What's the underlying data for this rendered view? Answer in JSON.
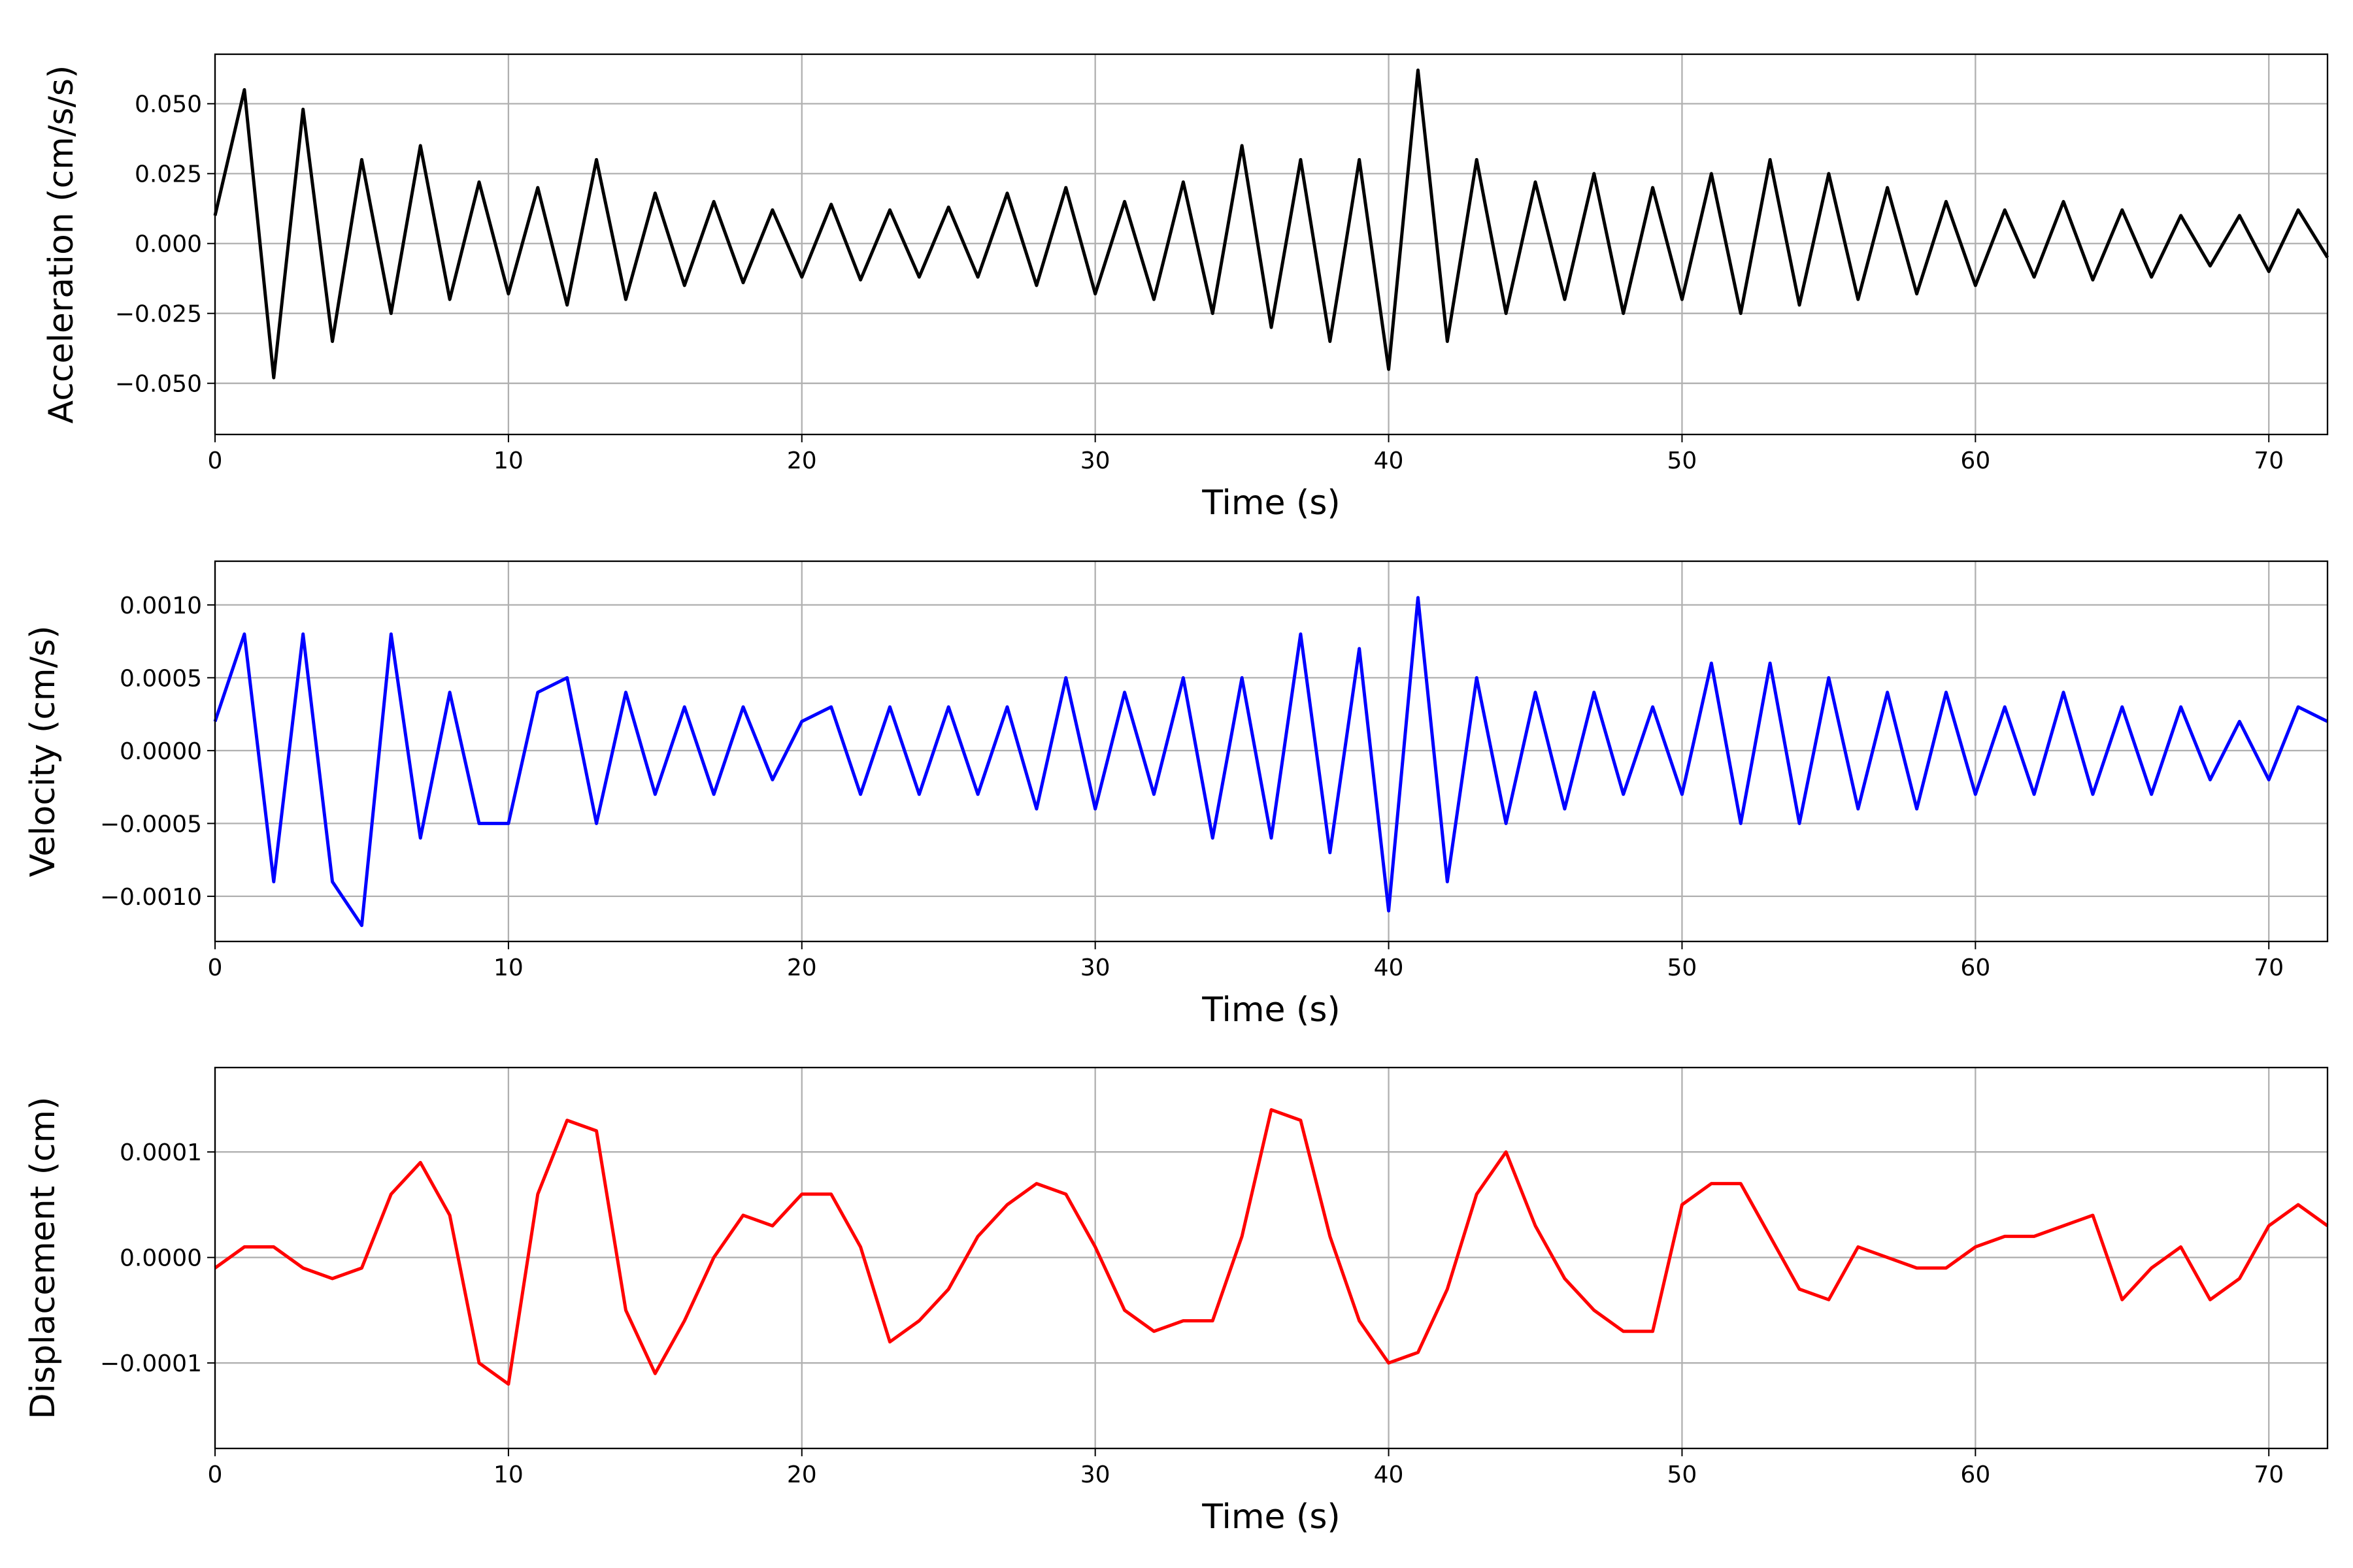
{
  "chart_data": [
    {
      "type": "line",
      "xlabel": "Time (s)",
      "ylabel": "Acceleration (cm/s/s)",
      "color": "#000000",
      "grid": true,
      "x": [
        0,
        1,
        2,
        3,
        4,
        5,
        6,
        7,
        8,
        9,
        10,
        11,
        12,
        13,
        14,
        15,
        16,
        17,
        18,
        19,
        20,
        21,
        22,
        23,
        24,
        25,
        26,
        27,
        28,
        29,
        30,
        31,
        32,
        33,
        34,
        35,
        36,
        37,
        38,
        39,
        40,
        41,
        42,
        43,
        44,
        45,
        46,
        47,
        48,
        49,
        50,
        51,
        52,
        53,
        54,
        55,
        56,
        57,
        58,
        59,
        60,
        61,
        62,
        63,
        64,
        65,
        66,
        67,
        68,
        69,
        70,
        71,
        72
      ],
      "values": [
        0.01,
        0.055,
        -0.048,
        0.048,
        -0.035,
        0.03,
        -0.025,
        0.035,
        -0.02,
        0.022,
        -0.018,
        0.02,
        -0.022,
        0.03,
        -0.02,
        0.018,
        -0.015,
        0.015,
        -0.014,
        0.012,
        -0.012,
        0.014,
        -0.013,
        0.012,
        -0.012,
        0.013,
        -0.012,
        0.018,
        -0.015,
        0.02,
        -0.018,
        0.015,
        -0.02,
        0.022,
        -0.025,
        0.035,
        -0.03,
        0.03,
        -0.035,
        0.03,
        -0.045,
        0.062,
        -0.035,
        0.03,
        -0.025,
        0.022,
        -0.02,
        0.025,
        -0.025,
        0.02,
        -0.02,
        0.025,
        -0.025,
        0.03,
        -0.022,
        0.025,
        -0.02,
        0.02,
        -0.018,
        0.015,
        -0.015,
        0.012,
        -0.012,
        0.015,
        -0.013,
        0.012,
        -0.012,
        0.01,
        -0.008,
        0.01,
        -0.01,
        0.012,
        -0.005
      ],
      "xlim": [
        0,
        72
      ],
      "xticks": [
        0,
        10,
        20,
        30,
        40,
        50,
        60,
        70
      ],
      "ylim": [
        -0.0683,
        0.0677
      ],
      "yticks": [
        {
          "value": -0.05,
          "label": "−0.050"
        },
        {
          "value": -0.025,
          "label": "−0.025"
        },
        {
          "value": 0,
          "label": "0.000"
        },
        {
          "value": 0.025,
          "label": "0.025"
        },
        {
          "value": 0.05,
          "label": "0.050"
        }
      ]
    },
    {
      "type": "line",
      "xlabel": "Time (s)",
      "ylabel": "Velocity (cm/s)",
      "color": "#0000ff",
      "grid": true,
      "x": [
        0,
        1,
        2,
        3,
        4,
        5,
        6,
        7,
        8,
        9,
        10,
        11,
        12,
        13,
        14,
        15,
        16,
        17,
        18,
        19,
        20,
        21,
        22,
        23,
        24,
        25,
        26,
        27,
        28,
        29,
        30,
        31,
        32,
        33,
        34,
        35,
        36,
        37,
        38,
        39,
        40,
        41,
        42,
        43,
        44,
        45,
        46,
        47,
        48,
        49,
        50,
        51,
        52,
        53,
        54,
        55,
        56,
        57,
        58,
        59,
        60,
        61,
        62,
        63,
        64,
        65,
        66,
        67,
        68,
        69,
        70,
        71,
        72
      ],
      "values": [
        0.0002,
        0.0008,
        -0.0009,
        0.0008,
        -0.0009,
        -0.0012,
        0.0008,
        -0.0006,
        0.0004,
        -0.0005,
        -0.0005,
        0.0004,
        0.0005,
        -0.0005,
        0.0004,
        -0.0003,
        0.0003,
        -0.0003,
        0.0003,
        -0.0002,
        0.0002,
        0.0003,
        -0.0003,
        0.0003,
        -0.0003,
        0.0003,
        -0.0003,
        0.0003,
        -0.0004,
        0.0005,
        -0.0004,
        0.0004,
        -0.0003,
        0.0005,
        -0.0006,
        0.0005,
        -0.0006,
        0.0008,
        -0.0007,
        0.0007,
        -0.0011,
        0.00105,
        -0.0009,
        0.0005,
        -0.0005,
        0.0004,
        -0.0004,
        0.0004,
        -0.0003,
        0.0003,
        -0.0003,
        0.0006,
        -0.0005,
        0.0006,
        -0.0005,
        0.0005,
        -0.0004,
        0.0004,
        -0.0004,
        0.0004,
        -0.0003,
        0.0003,
        -0.0003,
        0.0004,
        -0.0003,
        0.0003,
        -0.0003,
        0.0003,
        -0.0002,
        0.0002,
        -0.0002,
        0.0003,
        0.0002
      ],
      "xlim": [
        0,
        72
      ],
      "xticks": [
        0,
        10,
        20,
        30,
        40,
        50,
        60,
        70
      ],
      "ylim": [
        -0.00131,
        0.0013
      ],
      "yticks": [
        {
          "value": -0.001,
          "label": "−0.0010"
        },
        {
          "value": -0.0005,
          "label": "−0.0005"
        },
        {
          "value": 0,
          "label": "0.0000"
        },
        {
          "value": 0.0005,
          "label": "0.0005"
        },
        {
          "value": 0.001,
          "label": "0.0010"
        }
      ]
    },
    {
      "type": "line",
      "xlabel": "Time (s)",
      "ylabel": "Displacement (cm)",
      "color": "#ff0000",
      "grid": true,
      "x": [
        0,
        1,
        2,
        3,
        4,
        5,
        6,
        7,
        8,
        9,
        10,
        11,
        12,
        13,
        14,
        15,
        16,
        17,
        18,
        19,
        20,
        21,
        22,
        23,
        24,
        25,
        26,
        27,
        28,
        29,
        30,
        31,
        32,
        33,
        34,
        35,
        36,
        37,
        38,
        39,
        40,
        41,
        42,
        43,
        44,
        45,
        46,
        47,
        48,
        49,
        50,
        51,
        52,
        53,
        54,
        55,
        56,
        57,
        58,
        59,
        60,
        61,
        62,
        63,
        64,
        65,
        66,
        67,
        68,
        69,
        70,
        71,
        72
      ],
      "values": [
        -1e-05,
        1e-05,
        1e-05,
        -1e-05,
        -2e-05,
        -1e-05,
        6e-05,
        9e-05,
        4e-05,
        -0.0001,
        -0.00012,
        6e-05,
        0.00013,
        0.00012,
        -5e-05,
        -0.00011,
        -6e-05,
        0,
        4e-05,
        3e-05,
        6e-05,
        6e-05,
        1e-05,
        -8e-05,
        -6e-05,
        -3e-05,
        2e-05,
        5e-05,
        7e-05,
        6e-05,
        1e-05,
        -5e-05,
        -7e-05,
        -6e-05,
        -6e-05,
        2e-05,
        0.00014,
        0.00013,
        2e-05,
        -6e-05,
        -0.0001,
        -9e-05,
        -3e-05,
        6e-05,
        0.0001,
        3e-05,
        -2e-05,
        -5e-05,
        -7e-05,
        -7e-05,
        5e-05,
        7e-05,
        7e-05,
        2e-05,
        -3e-05,
        -4e-05,
        1e-05,
        0,
        -1e-05,
        -1e-05,
        1e-05,
        2e-05,
        2e-05,
        3e-05,
        4e-05,
        -4e-05,
        -1e-05,
        1e-05,
        -4e-05,
        -2e-05,
        3e-05,
        5e-05,
        3e-05
      ],
      "xlim": [
        0,
        72
      ],
      "xticks": [
        0,
        10,
        20,
        30,
        40,
        50,
        60,
        70
      ],
      "ylim": [
        -0.000181,
        0.00018
      ],
      "yticks": [
        {
          "value": -0.0001,
          "label": "−0.0001"
        },
        {
          "value": 0,
          "label": "0.0000"
        },
        {
          "value": 0.0001,
          "label": "0.0001"
        }
      ]
    }
  ]
}
